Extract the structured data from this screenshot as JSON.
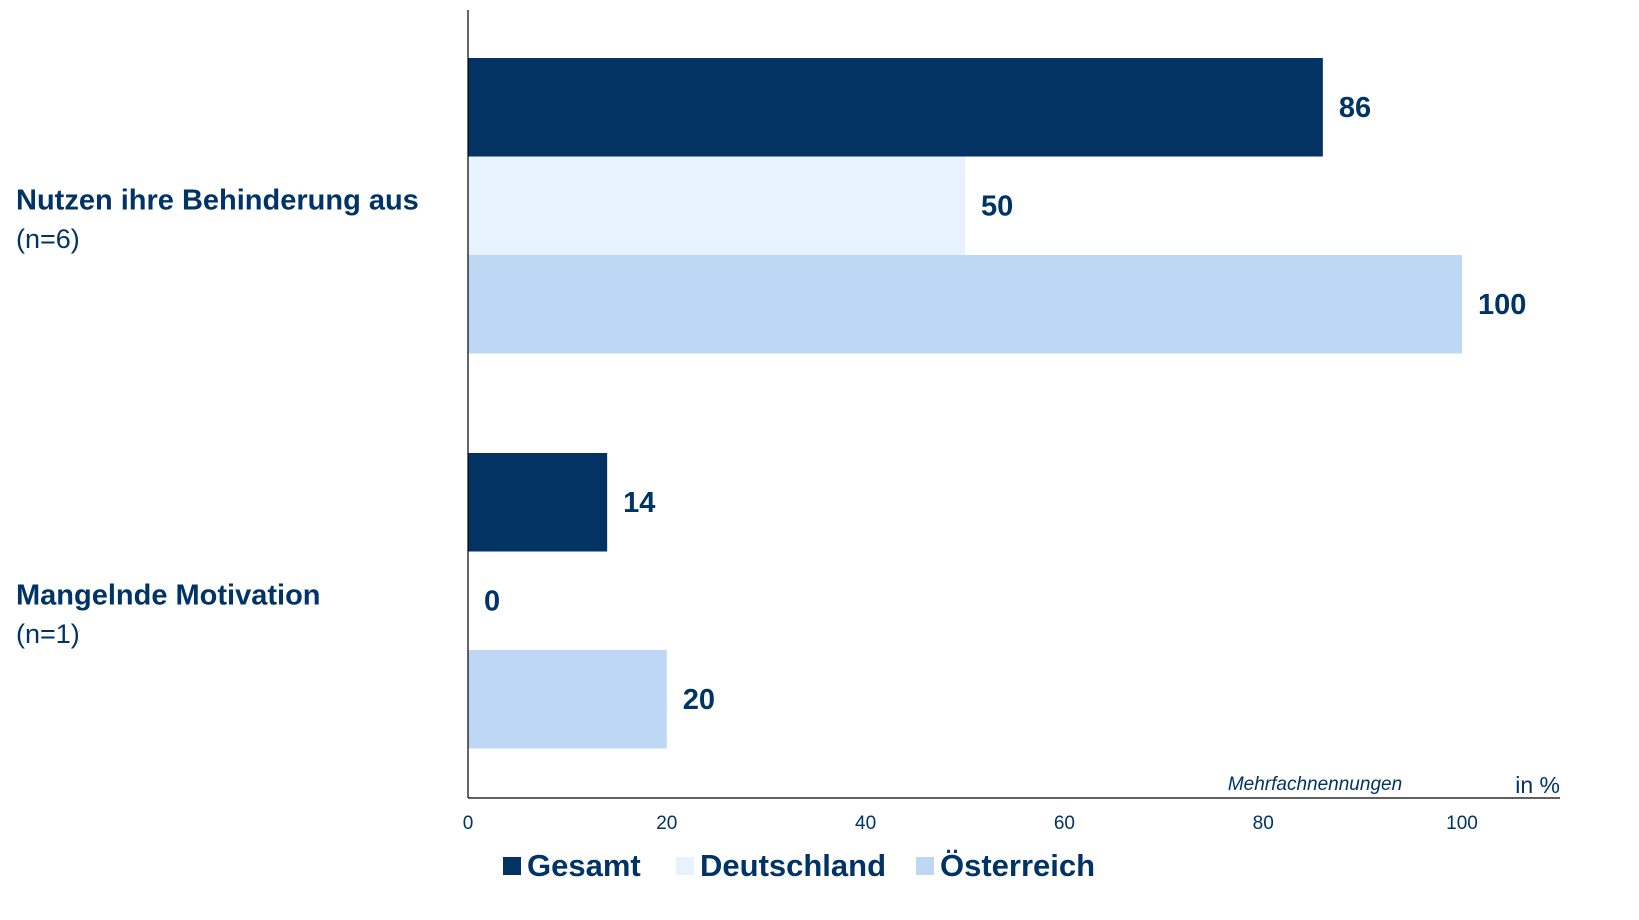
{
  "chart_data": {
    "type": "barh",
    "categories": [
      "Nutzen ihre Behinderung aus",
      "Mangelnde Motivation"
    ],
    "category_notes": [
      "(n=6)",
      "(n=1)"
    ],
    "series": [
      {
        "name": "Gesamt",
        "color": "#023363",
        "values": [
          86,
          14
        ]
      },
      {
        "name": "Deutschland",
        "color": "#e8f2fc",
        "values": [
          50,
          0
        ]
      },
      {
        "name": "Österreich",
        "color": "#bed7f5",
        "values": [
          100,
          20
        ]
      }
    ],
    "xlim": [
      0,
      100
    ],
    "xticks": [
      0,
      20,
      40,
      60,
      80,
      100
    ],
    "annotation": "Mehrfachnennungen",
    "unit_label": "in %",
    "legend": "bottom"
  }
}
